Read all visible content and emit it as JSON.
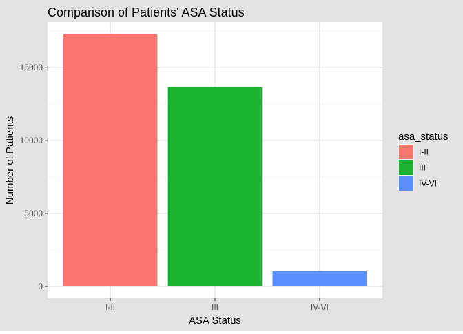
{
  "chart_data": {
    "type": "bar",
    "title": "Comparison of Patients' ASA Status",
    "xlabel": "ASA Status",
    "ylabel": "Number of Patients",
    "categories": [
      "I-II",
      "III",
      "IV-VI"
    ],
    "values": [
      17250,
      13650,
      1050
    ],
    "colors": [
      "#F8766D",
      "#1BB431",
      "#5A8FFF"
    ],
    "ylim": [
      -800,
      18100
    ],
    "yticks": [
      0,
      5000,
      10000,
      15000
    ],
    "ytick_labels": [
      "0",
      "5000",
      "10000",
      "15000"
    ],
    "grid": true,
    "legend": {
      "title": "asa_status",
      "placement": "right",
      "entries": [
        "I-II",
        "III",
        "IV-VI"
      ]
    }
  },
  "colors": {
    "outer_background": "#E3E3E3",
    "panel_background": "#FFFFFF",
    "grid_major": "#E0E0E0",
    "grid_minor": "#F0F0F0",
    "axis_text": "#4D4D4D",
    "title_text": "#000000"
  }
}
